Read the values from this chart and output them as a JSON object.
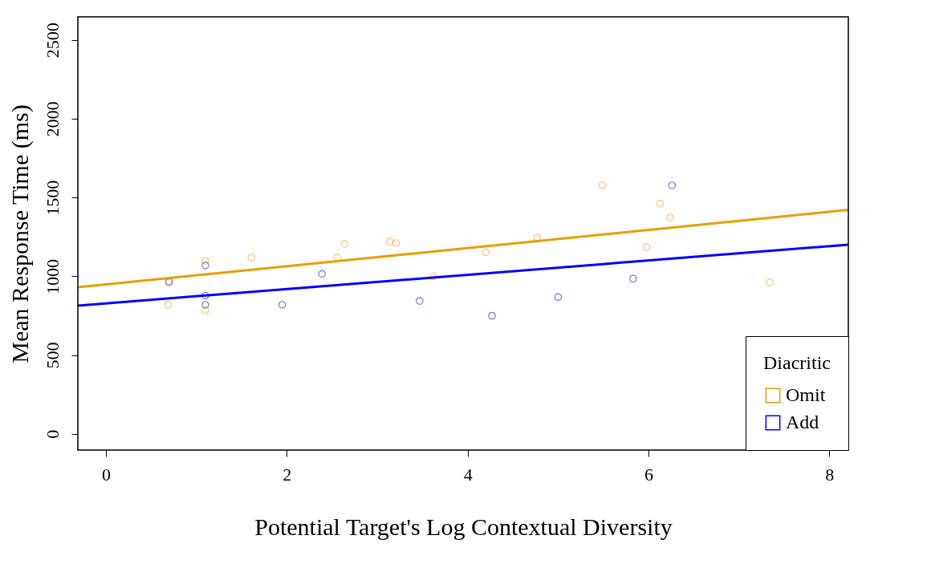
{
  "chart_data": {
    "type": "scatter",
    "xlabel": "Potential Target's Log Contextual Diversity",
    "ylabel": "Mean Response Time (ms)",
    "legend_title": "Diacritic",
    "xlim": [
      -0.31,
      8.21
    ],
    "ylim": [
      -103,
      2647
    ],
    "xticks": [
      0,
      2,
      4,
      6,
      8
    ],
    "yticks": [
      0,
      500,
      1000,
      1500,
      2000,
      2500
    ],
    "grid": false,
    "legend": "bottom right",
    "series": [
      {
        "type": "scatter",
        "marker": "circle",
        "color": "#ffa940",
        "x": [
          0.69,
          0.69,
          1.1,
          1.1,
          1.61,
          2.56,
          2.64,
          3.14,
          3.21,
          3.62,
          4.2,
          4.77,
          5.49,
          5.98,
          6.13,
          6.24,
          7.34
        ],
        "values": [
          820,
          960,
          1098,
          784,
          1118,
          1118,
          1206,
          1220,
          1210,
          1000,
          1152,
          1245,
          1578,
          1186,
          1461,
          1373,
          961
        ]
      },
      {
        "type": "scatter",
        "marker": "circle",
        "color": "#4040c0",
        "x": [
          0.7,
          1.1,
          1.1,
          1.1,
          1.95,
          2.39,
          3.47,
          4.27,
          5.0,
          5.83,
          6.26
        ],
        "values": [
          966,
          1069,
          877,
          819,
          819,
          1015,
          843,
          750,
          868,
          985,
          1578
        ]
      },
      {
        "type": "line",
        "name": "Omit",
        "marker": "none",
        "line_style": "solid",
        "color": "#e69f00",
        "x": [
          -0.31,
          8.21
        ],
        "values": [
          931,
          1422
        ]
      },
      {
        "type": "line",
        "name": "Add",
        "marker": "none",
        "line_style": "solid",
        "color": "#0000ff",
        "x": [
          -0.31,
          8.21
        ],
        "values": [
          814,
          1201
        ]
      }
    ]
  }
}
